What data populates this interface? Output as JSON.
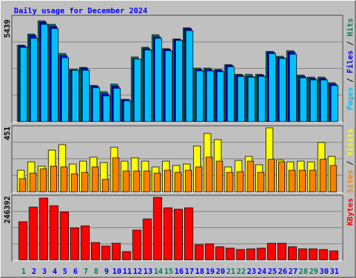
{
  "title": "Daily usage for December 2024",
  "chart_data": [
    {
      "type": "bar",
      "ylim": [
        0,
        5439
      ],
      "yticks": [
        5439
      ],
      "legend_separator": "/",
      "series": [
        {
          "name": "Hits",
          "color": "#00805c",
          "values": [
            4125,
            4725,
            5439,
            5250,
            3675,
            2813,
            2925,
            1950,
            1613,
            2025,
            1200,
            3488,
            4013,
            4688,
            3938,
            4463,
            5063,
            2888,
            2888,
            2813,
            3075,
            2550,
            2550,
            2550,
            3788,
            3525,
            3825,
            2513,
            2400,
            2400,
            2100
          ]
        },
        {
          "name": "Files",
          "color": "#0000ff",
          "values": [
            4088,
            4650,
            5363,
            5138,
            3563,
            2813,
            2888,
            1913,
            1500,
            1913,
            1200,
            3375,
            3938,
            4575,
            3900,
            4425,
            5025,
            2813,
            2813,
            2775,
            3038,
            2513,
            2438,
            2513,
            3750,
            3450,
            3750,
            2438,
            2325,
            2325,
            2025
          ]
        },
        {
          "name": "Pages",
          "color": "#00c0ff",
          "values": [
            4013,
            4500,
            5250,
            5025,
            3450,
            2775,
            2775,
            1838,
            1388,
            1800,
            1125,
            3375,
            3863,
            4500,
            3825,
            4388,
            4913,
            2738,
            2738,
            2700,
            2963,
            2438,
            2400,
            2438,
            3675,
            3413,
            3638,
            2363,
            2250,
            2250,
            1950
          ]
        }
      ]
    },
    {
      "type": "bar",
      "ylim": [
        0,
        451
      ],
      "yticks": [
        451
      ],
      "legend_separator": "/",
      "series": [
        {
          "name": "Visits",
          "color": "#ffff00",
          "values": [
            152,
            211,
            181,
            294,
            333,
            196,
            216,
            245,
            206,
            314,
            216,
            240,
            216,
            176,
            216,
            186,
            196,
            323,
            412,
            368,
            176,
            221,
            250,
            191,
            451,
            225,
            211,
            216,
            211,
            348,
            250
          ]
        },
        {
          "name": "Sites",
          "color": "#ff8000",
          "values": [
            93,
            132,
            162,
            181,
            176,
            127,
            137,
            176,
            88,
            240,
            147,
            147,
            147,
            132,
            152,
            137,
            152,
            176,
            245,
            216,
            137,
            142,
            216,
            137,
            230,
            211,
            152,
            152,
            152,
            230,
            186
          ]
        }
      ]
    },
    {
      "type": "bar",
      "ylim": [
        0,
        246392
      ],
      "yticks": [
        246392
      ],
      "categories": [
        "1",
        "2",
        "3",
        "4",
        "5",
        "6",
        "7",
        "8",
        "9",
        "10",
        "11",
        "12",
        "13",
        "14",
        "15",
        "16",
        "17",
        "18",
        "19",
        "20",
        "21",
        "22",
        "23",
        "24",
        "25",
        "26",
        "27",
        "28",
        "29",
        "30",
        "31"
      ],
      "category_colors": [
        "#00805c",
        "#0000ff",
        "#0000ff",
        "#0000ff",
        "#0000ff",
        "#0000ff",
        "#00805c",
        "#00805c",
        "#0000ff",
        "#0000ff",
        "#0000ff",
        "#0000ff",
        "#0000ff",
        "#00805c",
        "#00805c",
        "#0000ff",
        "#0000ff",
        "#0000ff",
        "#0000ff",
        "#0000ff",
        "#00805c",
        "#00805c",
        "#0000ff",
        "#0000ff",
        "#0000ff",
        "#0000ff",
        "#0000ff",
        "#00805c",
        "#00805c",
        "#0000ff",
        "#0000ff"
      ],
      "series": [
        {
          "name": "KBytes",
          "color": "#ff0000",
          "values": [
            150587,
            208000,
            243700,
            213500,
            188900,
            125900,
            134200,
            68400,
            54800,
            65700,
            32900,
            117700,
            161500,
            246392,
            205300,
            199900,
            205300,
            60200,
            63000,
            52000,
            46500,
            41100,
            43800,
            46500,
            65700,
            65700,
            52000,
            43800,
            43800,
            41100,
            35600
          ]
        }
      ]
    }
  ]
}
